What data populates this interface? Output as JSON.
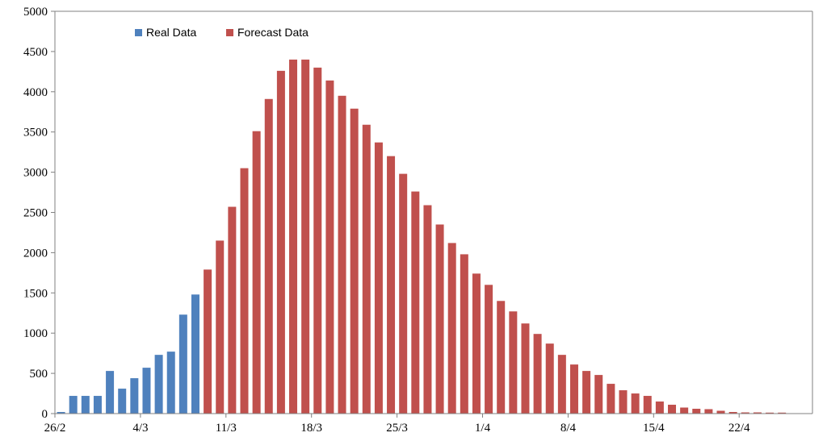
{
  "chart_data": {
    "type": "bar",
    "title": "",
    "xlabel": "",
    "ylabel": "",
    "ylim": [
      0,
      5000
    ],
    "yticks": [
      0,
      500,
      1000,
      1500,
      2000,
      2500,
      3000,
      3500,
      4000,
      4500,
      5000
    ],
    "x_start": "26/2",
    "xtick_labels": [
      "26/2",
      "4/3",
      "11/3",
      "18/3",
      "25/3",
      "1/4",
      "8/4",
      "15/4",
      "22/4"
    ],
    "grid": false,
    "legend_position": "top-left",
    "series": [
      {
        "name": "Real Data",
        "color": "#4f81bd",
        "x": [
          "26/2",
          "27/2",
          "28/2",
          "29/2",
          "1/3",
          "2/3",
          "3/3",
          "4/3",
          "5/3",
          "6/3",
          "7/3",
          "8/3"
        ],
        "values": [
          20,
          220,
          220,
          220,
          530,
          310,
          440,
          570,
          730,
          770,
          1230,
          1480
        ]
      },
      {
        "name": "Forecast Data",
        "color": "#c0504d",
        "x": [
          "9/3",
          "10/3",
          "11/3",
          "12/3",
          "13/3",
          "14/3",
          "15/3",
          "16/3",
          "17/3",
          "18/3",
          "19/3",
          "20/3",
          "21/3",
          "22/3",
          "23/3",
          "24/3",
          "25/3",
          "26/3",
          "27/3",
          "28/3",
          "29/3",
          "30/3",
          "31/3",
          "1/4",
          "2/4",
          "3/4",
          "4/4",
          "5/4",
          "6/4",
          "7/4",
          "8/4",
          "9/4",
          "10/4",
          "11/4",
          "12/4",
          "13/4",
          "14/4",
          "15/4",
          "16/4",
          "17/4",
          "18/4",
          "19/4",
          "20/4",
          "21/4",
          "22/4",
          "23/4",
          "24/4",
          "25/4"
        ],
        "values": [
          1790,
          2150,
          2570,
          3050,
          3510,
          3910,
          4260,
          4400,
          4400,
          4300,
          4140,
          3950,
          3790,
          3590,
          3370,
          3200,
          2980,
          2760,
          2590,
          2350,
          2120,
          1980,
          1740,
          1600,
          1400,
          1270,
          1120,
          990,
          870,
          730,
          610,
          530,
          480,
          370,
          290,
          250,
          220,
          150,
          110,
          75,
          60,
          55,
          35,
          20,
          15,
          15,
          12,
          12
        ]
      }
    ]
  }
}
